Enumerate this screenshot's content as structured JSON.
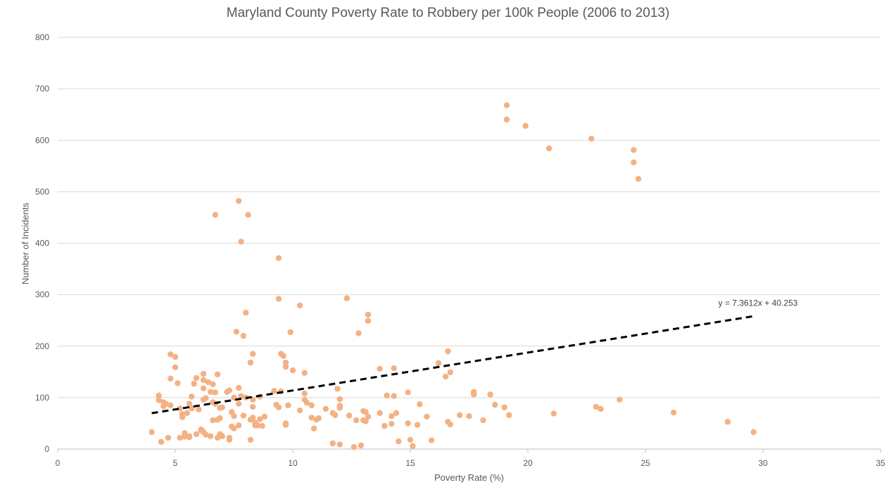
{
  "chart_data": {
    "type": "scatter",
    "title": "Maryland County Poverty Rate to Robbery per 100k People (2006 to 2013)",
    "xlabel": "Poverty Rate (%)",
    "ylabel": "Number of Incidents",
    "xlim": [
      0,
      35
    ],
    "ylim": [
      0,
      800
    ],
    "x_ticks": [
      "0",
      "5",
      "10",
      "15",
      "20",
      "25",
      "30",
      "35"
    ],
    "y_ticks": [
      "0",
      "100",
      "200",
      "300",
      "400",
      "500",
      "600",
      "700",
      "800"
    ],
    "grid": "horizontal",
    "marker_color": "#F4B183",
    "trendline": {
      "equation": "y = 7.3612x + 40.253",
      "slope": 7.3612,
      "intercept": 40.253,
      "x_range": [
        4,
        29.6
      ],
      "color": "#000000",
      "style": "dashed"
    },
    "points": [
      [
        4.0,
        33
      ],
      [
        4.3,
        95
      ],
      [
        4.3,
        104
      ],
      [
        4.4,
        14
      ],
      [
        4.5,
        83
      ],
      [
        4.5,
        91
      ],
      [
        4.6,
        88
      ],
      [
        4.7,
        22
      ],
      [
        4.8,
        85
      ],
      [
        4.8,
        137
      ],
      [
        4.8,
        184
      ],
      [
        5.0,
        159
      ],
      [
        5.0,
        179
      ],
      [
        5.1,
        128
      ],
      [
        5.2,
        22
      ],
      [
        5.2,
        79
      ],
      [
        5.3,
        62
      ],
      [
        5.3,
        68
      ],
      [
        5.4,
        31
      ],
      [
        5.4,
        24
      ],
      [
        5.5,
        70
      ],
      [
        5.6,
        23
      ],
      [
        5.6,
        25
      ],
      [
        5.6,
        88
      ],
      [
        5.7,
        102
      ],
      [
        5.7,
        79
      ],
      [
        5.8,
        127
      ],
      [
        5.9,
        138
      ],
      [
        5.9,
        29
      ],
      [
        6.0,
        77
      ],
      [
        6.1,
        38
      ],
      [
        6.1,
        36
      ],
      [
        6.2,
        33
      ],
      [
        6.2,
        146
      ],
      [
        6.2,
        134
      ],
      [
        6.2,
        118
      ],
      [
        6.2,
        96
      ],
      [
        6.3,
        28
      ],
      [
        6.3,
        99
      ],
      [
        6.4,
        130
      ],
      [
        6.5,
        111
      ],
      [
        6.5,
        25
      ],
      [
        6.6,
        91
      ],
      [
        6.6,
        126
      ],
      [
        6.6,
        56
      ],
      [
        6.7,
        88
      ],
      [
        6.7,
        455
      ],
      [
        6.7,
        110
      ],
      [
        6.8,
        22
      ],
      [
        6.8,
        145
      ],
      [
        6.8,
        57
      ],
      [
        6.9,
        80
      ],
      [
        6.9,
        29
      ],
      [
        6.9,
        60
      ],
      [
        7.0,
        81
      ],
      [
        7.0,
        25
      ],
      [
        7.2,
        111
      ],
      [
        7.3,
        114
      ],
      [
        7.3,
        18
      ],
      [
        7.3,
        22
      ],
      [
        7.4,
        44
      ],
      [
        7.4,
        72
      ],
      [
        7.5,
        40
      ],
      [
        7.5,
        64
      ],
      [
        7.5,
        100
      ],
      [
        7.6,
        228
      ],
      [
        7.7,
        482
      ],
      [
        7.7,
        119
      ],
      [
        7.7,
        88
      ],
      [
        7.7,
        46
      ],
      [
        7.8,
        103
      ],
      [
        7.8,
        403
      ],
      [
        7.9,
        220
      ],
      [
        7.9,
        65
      ],
      [
        8.0,
        265
      ],
      [
        8.0,
        100
      ],
      [
        8.1,
        455
      ],
      [
        8.2,
        168
      ],
      [
        8.2,
        57
      ],
      [
        8.2,
        18
      ],
      [
        8.3,
        185
      ],
      [
        8.3,
        96
      ],
      [
        8.3,
        82
      ],
      [
        8.3,
        61
      ],
      [
        8.4,
        46
      ],
      [
        8.4,
        51
      ],
      [
        8.5,
        46
      ],
      [
        8.6,
        102
      ],
      [
        8.6,
        58
      ],
      [
        8.7,
        45
      ],
      [
        8.8,
        63
      ],
      [
        9.2,
        113
      ],
      [
        9.3,
        86
      ],
      [
        9.4,
        371
      ],
      [
        9.4,
        292
      ],
      [
        9.4,
        81
      ],
      [
        9.5,
        112
      ],
      [
        9.5,
        185
      ],
      [
        9.6,
        181
      ],
      [
        9.7,
        168
      ],
      [
        9.7,
        160
      ],
      [
        9.7,
        50
      ],
      [
        9.7,
        47
      ],
      [
        9.8,
        85
      ],
      [
        9.9,
        227
      ],
      [
        10.0,
        153
      ],
      [
        10.3,
        279
      ],
      [
        10.3,
        75
      ],
      [
        10.5,
        148
      ],
      [
        10.5,
        108
      ],
      [
        10.5,
        96
      ],
      [
        10.6,
        90
      ],
      [
        10.8,
        85
      ],
      [
        10.8,
        61
      ],
      [
        10.9,
        40
      ],
      [
        11.0,
        57
      ],
      [
        11.1,
        60
      ],
      [
        11.4,
        78
      ],
      [
        11.7,
        70
      ],
      [
        11.7,
        11
      ],
      [
        11.8,
        66
      ],
      [
        11.9,
        117
      ],
      [
        12.0,
        97
      ],
      [
        12.0,
        84
      ],
      [
        12.0,
        80
      ],
      [
        12.0,
        9
      ],
      [
        12.3,
        293
      ],
      [
        12.4,
        65
      ],
      [
        12.6,
        4
      ],
      [
        12.7,
        56
      ],
      [
        12.8,
        225
      ],
      [
        12.9,
        7
      ],
      [
        13.0,
        74
      ],
      [
        13.0,
        56
      ],
      [
        13.1,
        72
      ],
      [
        13.1,
        54
      ],
      [
        13.2,
        261
      ],
      [
        13.2,
        249
      ],
      [
        13.2,
        63
      ],
      [
        13.7,
        156
      ],
      [
        13.7,
        70
      ],
      [
        13.9,
        45
      ],
      [
        14.0,
        104
      ],
      [
        14.2,
        64
      ],
      [
        14.2,
        49
      ],
      [
        14.3,
        157
      ],
      [
        14.3,
        103
      ],
      [
        14.4,
        70
      ],
      [
        14.5,
        15
      ],
      [
        14.9,
        110
      ],
      [
        14.9,
        50
      ],
      [
        15.0,
        18
      ],
      [
        15.1,
        6
      ],
      [
        15.3,
        47
      ],
      [
        15.4,
        87
      ],
      [
        15.7,
        63
      ],
      [
        15.9,
        17
      ],
      [
        16.2,
        167
      ],
      [
        16.5,
        141
      ],
      [
        16.6,
        190
      ],
      [
        16.6,
        53
      ],
      [
        16.7,
        149
      ],
      [
        16.7,
        48
      ],
      [
        17.1,
        66
      ],
      [
        17.5,
        64
      ],
      [
        17.7,
        111
      ],
      [
        17.7,
        106
      ],
      [
        18.1,
        56
      ],
      [
        18.4,
        106
      ],
      [
        18.6,
        86
      ],
      [
        19.0,
        81
      ],
      [
        19.1,
        668
      ],
      [
        19.1,
        640
      ],
      [
        19.2,
        66
      ],
      [
        19.9,
        628
      ],
      [
        20.9,
        584
      ],
      [
        21.1,
        69
      ],
      [
        22.7,
        603
      ],
      [
        22.9,
        82
      ],
      [
        23.1,
        78
      ],
      [
        23.9,
        96
      ],
      [
        24.5,
        581
      ],
      [
        24.5,
        557
      ],
      [
        24.7,
        525
      ],
      [
        26.2,
        71
      ],
      [
        28.5,
        53
      ],
      [
        29.6,
        33
      ]
    ]
  }
}
